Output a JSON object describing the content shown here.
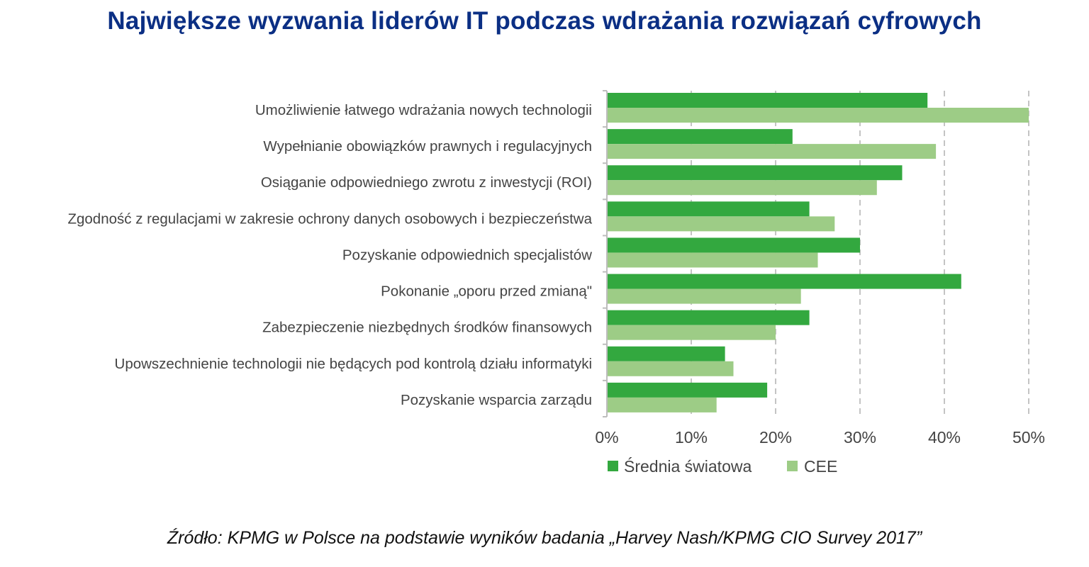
{
  "title": "Największe wyzwania liderów IT podczas wdrażania rozwiązań cyfrowych",
  "source": "Źródło: KPMG w Polsce na podstawie wyników badania „Harvey Nash/KPMG CIO Survey 2017”",
  "colors": {
    "title": "#0b2f84",
    "series_world": "#33a83f",
    "series_cee": "#9dcc86",
    "grid": "#c4c4c4",
    "text": "#444444"
  },
  "chart_data": {
    "type": "bar",
    "orientation": "horizontal",
    "categories": [
      "Umożliwienie łatwego wdrażania nowych technologii",
      "Wypełnianie obowiązków prawnych i regulacyjnych",
      "Osiąganie odpowiedniego zwrotu z inwestycji (ROI)",
      "Zgodność z regulacjami w zakresie ochrony danych osobowych i bezpieczeństwa",
      "Pozyskanie odpowiednich specjalistów",
      "Pokonanie „oporu przed zmianą\"",
      "Zabezpieczenie niezbędnych środków finansowych",
      "Upowszechnienie technologii nie będących pod kontrolą działu informatyki",
      "Pozyskanie wsparcia zarządu"
    ],
    "series": [
      {
        "name": "Średnia światowa",
        "color": "#33a83f",
        "values": [
          38,
          22,
          35,
          24,
          30,
          42,
          24,
          14,
          19
        ]
      },
      {
        "name": "CEE",
        "color": "#9dcc86",
        "values": [
          50,
          39,
          32,
          27,
          25,
          23,
          20,
          15,
          13
        ]
      }
    ],
    "xlim": [
      0,
      50
    ],
    "xticks": [
      0,
      10,
      20,
      30,
      40,
      50
    ],
    "xtick_labels": [
      "0%",
      "10%",
      "20%",
      "30%",
      "40%",
      "50%"
    ],
    "grid": "vertical-dashed",
    "legend": "bottom",
    "xlabel": "",
    "ylabel": ""
  }
}
